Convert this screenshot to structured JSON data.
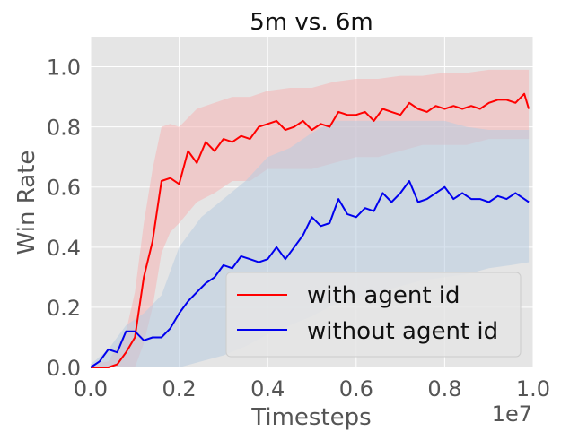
{
  "chart_data": {
    "type": "line",
    "title": "5m vs. 6m",
    "xlabel": "Timesteps",
    "ylabel": "Win Rate",
    "x_offset_label": "1e7",
    "xlim": [
      0.0,
      1.0
    ],
    "ylim": [
      0.0,
      1.1
    ],
    "xticks": [
      "0.0",
      "0.2",
      "0.4",
      "0.6",
      "0.8",
      "1.0"
    ],
    "yticks": [
      "0.0",
      "0.2",
      "0.4",
      "0.6",
      "0.8",
      "1.0"
    ],
    "grid": true,
    "legend_position": "lower right",
    "series": [
      {
        "name": "with agent id",
        "color": "#ff0000",
        "band_color": "#f5b5b5",
        "points": [
          [
            0.0,
            0.0
          ],
          [
            0.02,
            0.0
          ],
          [
            0.04,
            0.0
          ],
          [
            0.06,
            0.01
          ],
          [
            0.08,
            0.05
          ],
          [
            0.1,
            0.1
          ],
          [
            0.12,
            0.3
          ],
          [
            0.14,
            0.42
          ],
          [
            0.16,
            0.62
          ],
          [
            0.18,
            0.63
          ],
          [
            0.2,
            0.61
          ],
          [
            0.22,
            0.72
          ],
          [
            0.24,
            0.68
          ],
          [
            0.26,
            0.75
          ],
          [
            0.28,
            0.72
          ],
          [
            0.3,
            0.76
          ],
          [
            0.32,
            0.75
          ],
          [
            0.34,
            0.77
          ],
          [
            0.36,
            0.76
          ],
          [
            0.38,
            0.8
          ],
          [
            0.4,
            0.81
          ],
          [
            0.42,
            0.82
          ],
          [
            0.44,
            0.79
          ],
          [
            0.46,
            0.8
          ],
          [
            0.48,
            0.82
          ],
          [
            0.5,
            0.79
          ],
          [
            0.52,
            0.81
          ],
          [
            0.54,
            0.8
          ],
          [
            0.56,
            0.85
          ],
          [
            0.58,
            0.84
          ],
          [
            0.6,
            0.84
          ],
          [
            0.62,
            0.85
          ],
          [
            0.64,
            0.82
          ],
          [
            0.66,
            0.86
          ],
          [
            0.68,
            0.85
          ],
          [
            0.7,
            0.84
          ],
          [
            0.72,
            0.88
          ],
          [
            0.74,
            0.86
          ],
          [
            0.76,
            0.85
          ],
          [
            0.78,
            0.87
          ],
          [
            0.8,
            0.86
          ],
          [
            0.82,
            0.87
          ],
          [
            0.84,
            0.86
          ],
          [
            0.86,
            0.87
          ],
          [
            0.88,
            0.86
          ],
          [
            0.9,
            0.88
          ],
          [
            0.92,
            0.89
          ],
          [
            0.94,
            0.89
          ],
          [
            0.96,
            0.88
          ],
          [
            0.98,
            0.91
          ],
          [
            0.99,
            0.86
          ]
        ],
        "band": [
          [
            0.0,
            0.0,
            0.01
          ],
          [
            0.04,
            0.0,
            0.02
          ],
          [
            0.08,
            0.0,
            0.12
          ],
          [
            0.1,
            0.0,
            0.25
          ],
          [
            0.12,
            0.08,
            0.48
          ],
          [
            0.14,
            0.2,
            0.66
          ],
          [
            0.16,
            0.38,
            0.8
          ],
          [
            0.18,
            0.45,
            0.81
          ],
          [
            0.2,
            0.48,
            0.8
          ],
          [
            0.24,
            0.55,
            0.86
          ],
          [
            0.28,
            0.58,
            0.88
          ],
          [
            0.32,
            0.62,
            0.9
          ],
          [
            0.36,
            0.62,
            0.9
          ],
          [
            0.4,
            0.66,
            0.92
          ],
          [
            0.45,
            0.66,
            0.93
          ],
          [
            0.5,
            0.66,
            0.93
          ],
          [
            0.55,
            0.68,
            0.95
          ],
          [
            0.6,
            0.7,
            0.96
          ],
          [
            0.65,
            0.7,
            0.96
          ],
          [
            0.7,
            0.72,
            0.97
          ],
          [
            0.75,
            0.74,
            0.97
          ],
          [
            0.8,
            0.74,
            0.98
          ],
          [
            0.85,
            0.74,
            0.98
          ],
          [
            0.9,
            0.76,
            0.99
          ],
          [
            0.95,
            0.76,
            0.99
          ],
          [
            0.99,
            0.76,
            0.99
          ]
        ]
      },
      {
        "name": "without agent id",
        "color": "#0000ee",
        "band_color": "#b8cce0",
        "points": [
          [
            0.0,
            0.0
          ],
          [
            0.02,
            0.02
          ],
          [
            0.04,
            0.06
          ],
          [
            0.06,
            0.05
          ],
          [
            0.08,
            0.12
          ],
          [
            0.1,
            0.12
          ],
          [
            0.12,
            0.09
          ],
          [
            0.14,
            0.1
          ],
          [
            0.16,
            0.1
          ],
          [
            0.18,
            0.13
          ],
          [
            0.2,
            0.18
          ],
          [
            0.22,
            0.22
          ],
          [
            0.24,
            0.25
          ],
          [
            0.26,
            0.28
          ],
          [
            0.28,
            0.3
          ],
          [
            0.3,
            0.34
          ],
          [
            0.32,
            0.33
          ],
          [
            0.34,
            0.37
          ],
          [
            0.36,
            0.36
          ],
          [
            0.38,
            0.35
          ],
          [
            0.4,
            0.36
          ],
          [
            0.42,
            0.4
          ],
          [
            0.44,
            0.36
          ],
          [
            0.46,
            0.4
          ],
          [
            0.48,
            0.44
          ],
          [
            0.5,
            0.5
          ],
          [
            0.52,
            0.47
          ],
          [
            0.54,
            0.48
          ],
          [
            0.56,
            0.56
          ],
          [
            0.58,
            0.51
          ],
          [
            0.6,
            0.5
          ],
          [
            0.62,
            0.53
          ],
          [
            0.64,
            0.52
          ],
          [
            0.66,
            0.58
          ],
          [
            0.68,
            0.55
          ],
          [
            0.7,
            0.58
          ],
          [
            0.72,
            0.62
          ],
          [
            0.74,
            0.55
          ],
          [
            0.76,
            0.56
          ],
          [
            0.78,
            0.58
          ],
          [
            0.8,
            0.6
          ],
          [
            0.82,
            0.56
          ],
          [
            0.84,
            0.58
          ],
          [
            0.86,
            0.56
          ],
          [
            0.88,
            0.56
          ],
          [
            0.9,
            0.55
          ],
          [
            0.92,
            0.57
          ],
          [
            0.94,
            0.56
          ],
          [
            0.96,
            0.58
          ],
          [
            0.98,
            0.56
          ],
          [
            0.99,
            0.55
          ]
        ],
        "band": [
          [
            0.0,
            0.0,
            0.01
          ],
          [
            0.04,
            0.0,
            0.06
          ],
          [
            0.08,
            0.0,
            0.14
          ],
          [
            0.12,
            0.0,
            0.18
          ],
          [
            0.16,
            0.0,
            0.24
          ],
          [
            0.2,
            0.0,
            0.4
          ],
          [
            0.25,
            0.02,
            0.5
          ],
          [
            0.3,
            0.04,
            0.56
          ],
          [
            0.35,
            0.07,
            0.62
          ],
          [
            0.4,
            0.11,
            0.7
          ],
          [
            0.45,
            0.14,
            0.73
          ],
          [
            0.5,
            0.17,
            0.78
          ],
          [
            0.55,
            0.21,
            0.82
          ],
          [
            0.6,
            0.23,
            0.82
          ],
          [
            0.65,
            0.25,
            0.82
          ],
          [
            0.7,
            0.27,
            0.82
          ],
          [
            0.75,
            0.29,
            0.82
          ],
          [
            0.8,
            0.3,
            0.82
          ],
          [
            0.85,
            0.31,
            0.8
          ],
          [
            0.9,
            0.33,
            0.79
          ],
          [
            0.95,
            0.34,
            0.79
          ],
          [
            0.99,
            0.35,
            0.79
          ]
        ]
      }
    ]
  }
}
